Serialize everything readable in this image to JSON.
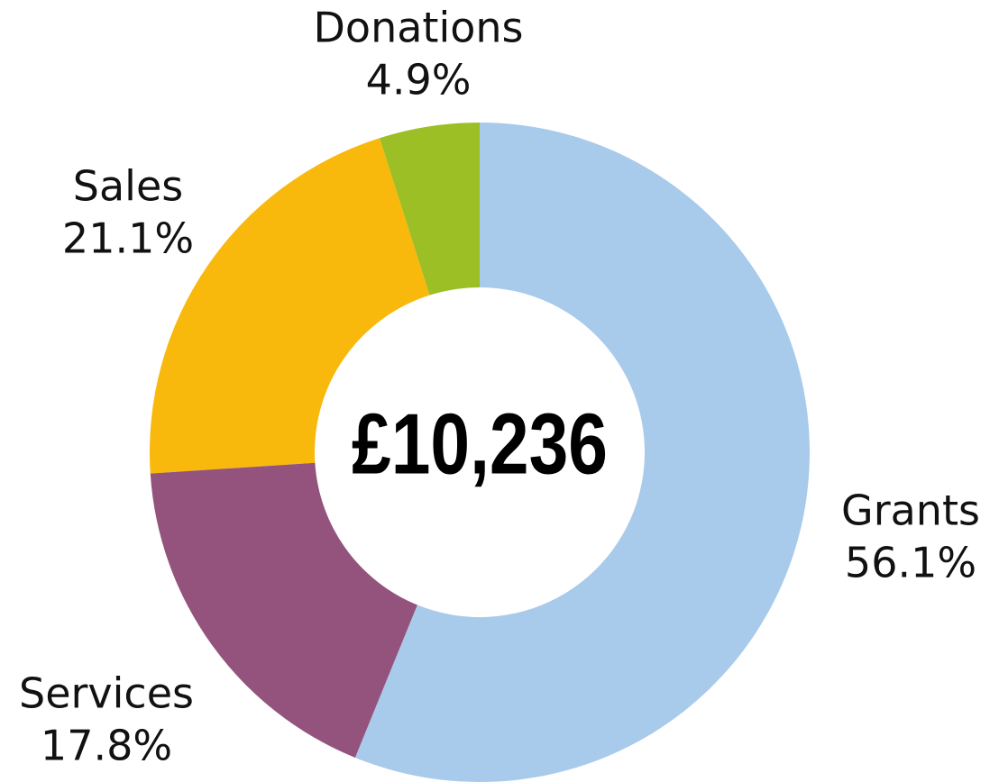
{
  "chart_data": {
    "type": "donut",
    "center_text": "£10,236",
    "categories": [
      "Grants",
      "Services",
      "Sales",
      "Donations"
    ],
    "values": [
      56.1,
      17.8,
      21.1,
      4.9
    ],
    "value_labels": [
      "56.1%",
      "17.8%",
      "21.1%",
      "4.9%"
    ],
    "colors": [
      "#a8caeb",
      "#93537d",
      "#f8b80c",
      "#9bbf24"
    ]
  }
}
